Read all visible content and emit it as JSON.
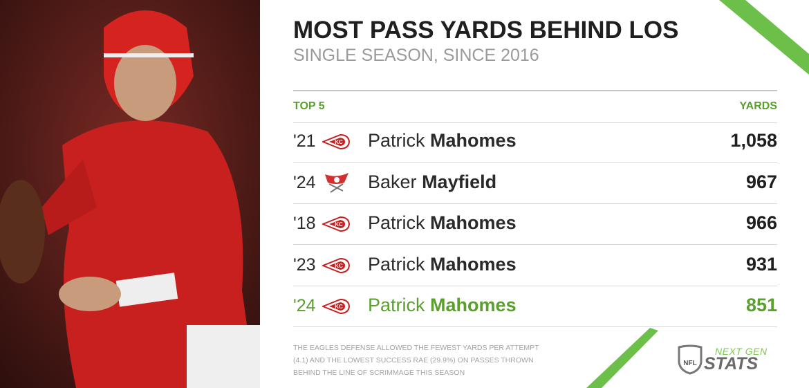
{
  "header": {
    "title": "MOST PASS YARDS BEHIND LOS",
    "subtitle": "SINGLE SEASON, SINCE 2016"
  },
  "table": {
    "columns": [
      "TOP 5",
      "YARDS"
    ],
    "rows": [
      {
        "season": "'21",
        "first_name": "Patrick",
        "last_name": "Mahomes",
        "yards": "1,058"
      },
      {
        "season": "'24",
        "first_name": "Baker",
        "last_name": "Mayfield",
        "yards": "967"
      },
      {
        "season": "'18",
        "first_name": "Patrick",
        "last_name": "Mahomes",
        "yards": "966"
      },
      {
        "season": "'23",
        "first_name": "Patrick",
        "last_name": "Mahomes",
        "yards": "931"
      },
      {
        "season": "'24",
        "first_name": "Patrick",
        "last_name": "Mahomes",
        "yards": "851"
      }
    ]
  },
  "footnote": [
    "THE EAGLES DEFENSE ALLOWED THE FEWEST YARDS PER ATTEMPT",
    "(4.1) AND THE LOWEST SUCCESS RAE (29.9%) ON PASSES THROWN",
    "BEHIND THE LINE OF SCRIMMAGE THIS SEASON"
  ],
  "branding": {
    "league": "NFL",
    "line1": "NEXT GEN",
    "line2": "STATS"
  }
}
